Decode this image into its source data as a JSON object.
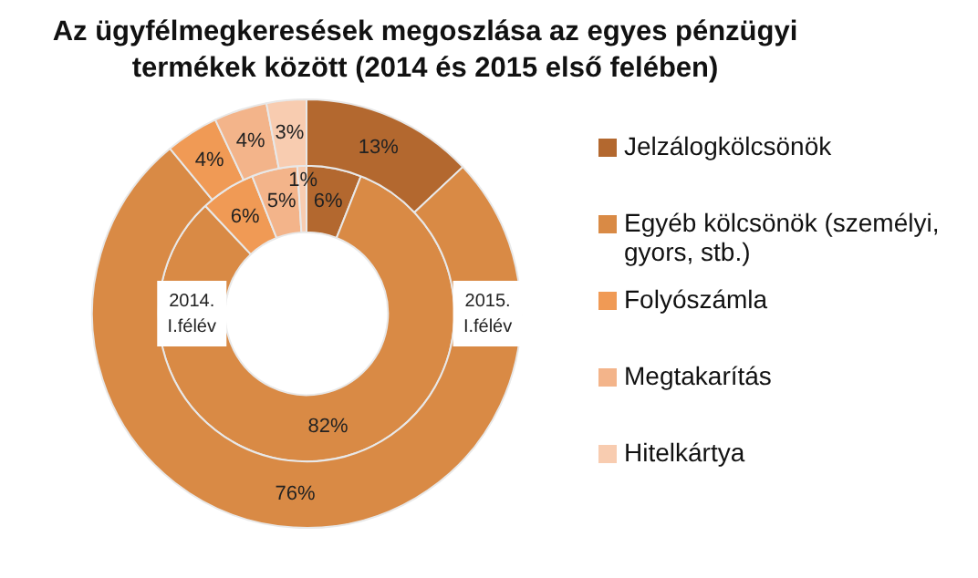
{
  "chart_data": {
    "type": "donut",
    "title": "Az ügyfélmegkeresések megoszlása az egyes pénzügyi termékek között (2014 és 2015 első felében)",
    "categories": [
      "Jelzálogkölcsönök",
      "Egyéb kölcsönök (személyi, gyors, stb.)",
      "Folyószámla",
      "Megtakarítás",
      "Hitelkártya"
    ],
    "colors": [
      "#b3682f",
      "#d98a45",
      "#f09a55",
      "#f3b48a",
      "#f8ccb0"
    ],
    "series": [
      {
        "name": "2015. I.félév",
        "values": [
          13,
          76,
          4,
          4,
          3
        ],
        "value_labels": [
          "13%",
          "76%",
          "4%",
          "4%",
          "3%"
        ]
      },
      {
        "name": "2014. I.félév",
        "values": [
          6,
          82,
          6,
          5,
          1
        ],
        "value_labels": [
          "6%",
          "82%",
          "6%",
          "5%",
          "1%"
        ]
      }
    ],
    "legend": "right"
  }
}
